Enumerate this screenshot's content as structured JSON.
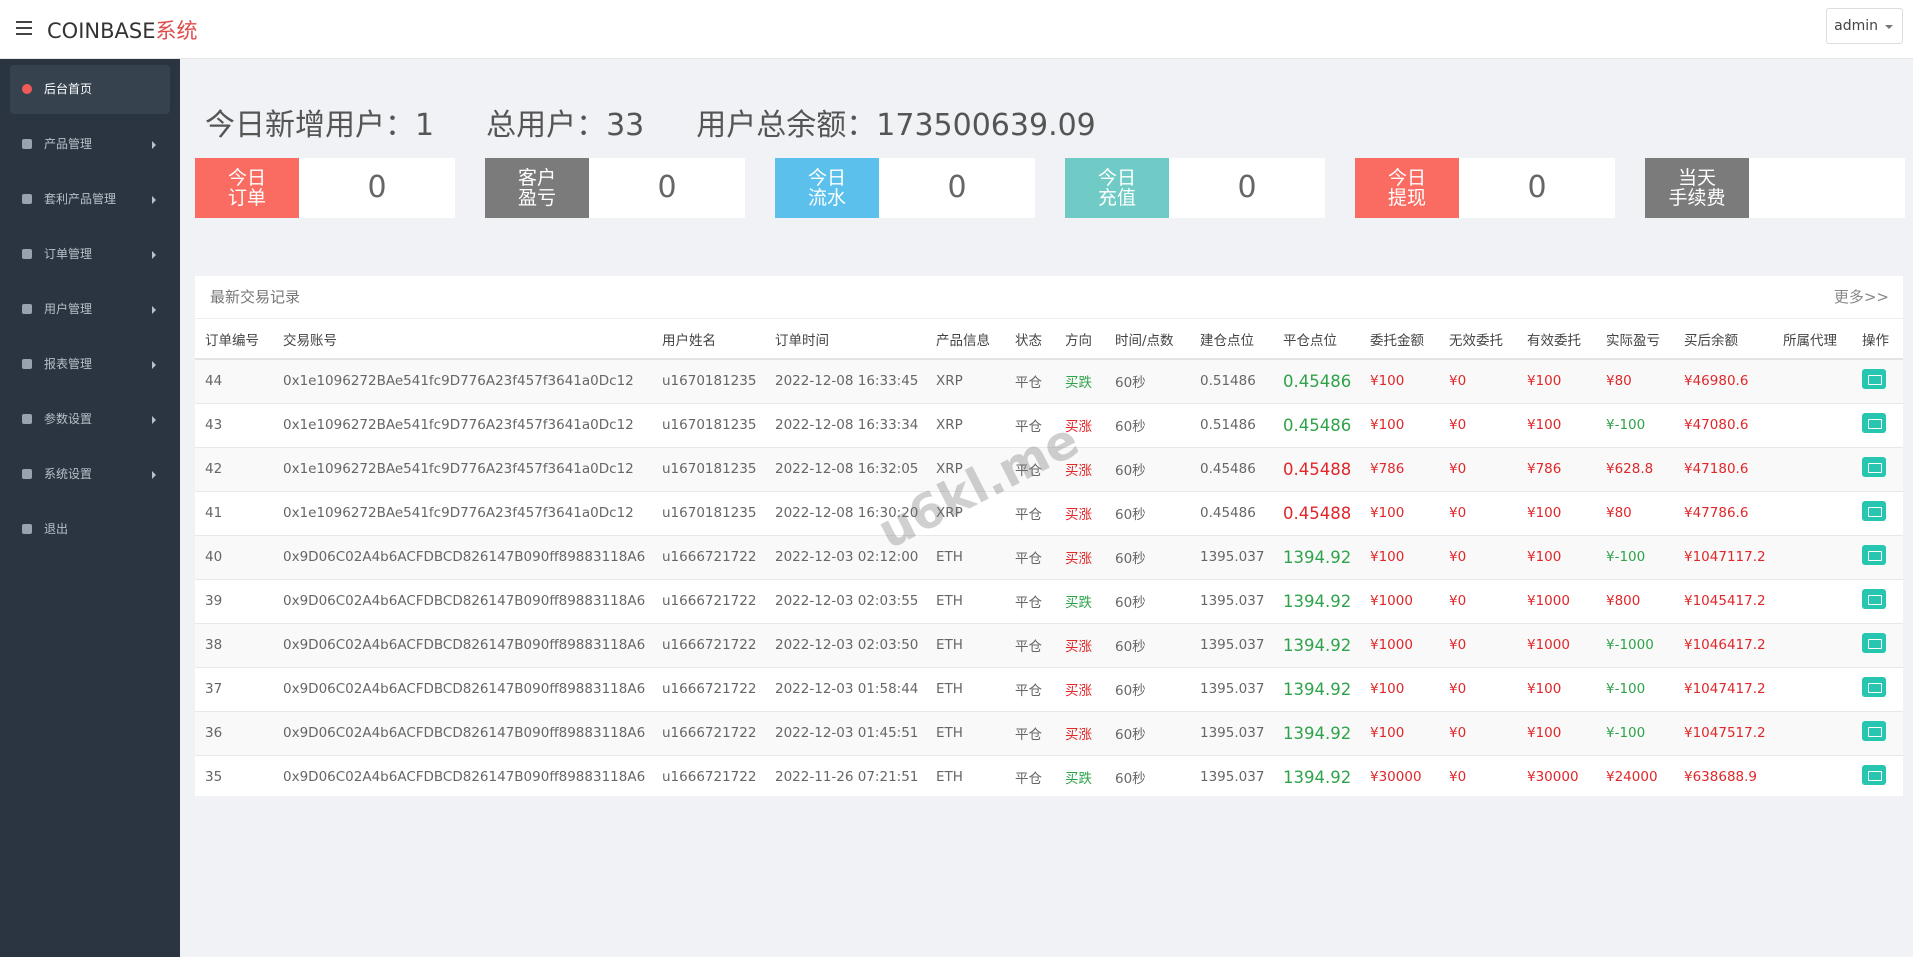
{
  "header": {
    "brand": "COINBASE",
    "brand_suffix": "系统",
    "user": "admin"
  },
  "sidebar": [
    "后台首页",
    "产品管理",
    "套利产品管理",
    "订单管理",
    "用户管理",
    "报表管理",
    "参数设置",
    "系统设置",
    "退出"
  ],
  "summary": [
    {
      "label": "今日新增用户：",
      "value": "1"
    },
    {
      "label": "总用户：",
      "value": "33"
    },
    {
      "label": "用户总余额：",
      "value": "173500639.09"
    }
  ],
  "cards": [
    {
      "label": [
        "今日",
        "订单"
      ],
      "value": "0",
      "color": "#fa6c62"
    },
    {
      "label": [
        "客户",
        "盈亏"
      ],
      "value": "0",
      "color": "#7b7b7b"
    },
    {
      "label": [
        "今日",
        "流水"
      ],
      "value": "0",
      "color": "#5bc0eb"
    },
    {
      "label": [
        "今日",
        "充值"
      ],
      "value": "0",
      "color": "#70cbc6"
    },
    {
      "label": [
        "今日",
        "提现"
      ],
      "value": "0",
      "color": "#fa6c62"
    },
    {
      "label": [
        "当天",
        "手续费"
      ],
      "color": "#7b7b7b"
    }
  ],
  "table": {
    "title": "最新交易记录",
    "more": "更多>>",
    "columns": [
      "订单编号",
      "交易账号",
      "用户姓名",
      "订单时间",
      "产品信息",
      "状态",
      "方向",
      "时间/点数",
      "建仓点位",
      "平仓点位",
      "委托金额",
      "无效委托",
      "有效委托",
      "实际盈亏",
      "买后余额",
      "所属代理",
      "操作"
    ],
    "rows": [
      [
        "44",
        "0x1e1096272BAe541fc9D776A23f457f3641a0Dc12",
        "u1670181235",
        "2022-12-08 16:33:45",
        "XRP",
        "平仓",
        "买跌",
        "60秒",
        "0.51486",
        "0.45486",
        "¥100",
        "¥0",
        "¥100",
        "¥80",
        "¥46980.6"
      ],
      [
        "43",
        "0x1e1096272BAe541fc9D776A23f457f3641a0Dc12",
        "u1670181235",
        "2022-12-08 16:33:34",
        "XRP",
        "平仓",
        "买涨",
        "60秒",
        "0.51486",
        "0.45486",
        "¥100",
        "¥0",
        "¥100",
        "¥-100",
        "¥47080.6"
      ],
      [
        "42",
        "0x1e1096272BAe541fc9D776A23f457f3641a0Dc12",
        "u1670181235",
        "2022-12-08 16:32:05",
        "XRP",
        "平仓",
        "买涨",
        "60秒",
        "0.45486",
        "0.45488",
        "¥786",
        "¥0",
        "¥786",
        "¥628.8",
        "¥47180.6"
      ],
      [
        "41",
        "0x1e1096272BAe541fc9D776A23f457f3641a0Dc12",
        "u1670181235",
        "2022-12-08 16:30:20",
        "XRP",
        "平仓",
        "买涨",
        "60秒",
        "0.45486",
        "0.45488",
        "¥100",
        "¥0",
        "¥100",
        "¥80",
        "¥47786.6"
      ],
      [
        "40",
        "0x9D06C02A4b6ACFDBCD826147B090ff89883118A6",
        "u1666721722",
        "2022-12-03 02:12:00",
        "ETH",
        "平仓",
        "买涨",
        "60秒",
        "1395.037",
        "1394.92",
        "¥100",
        "¥0",
        "¥100",
        "¥-100",
        "¥1047117.2"
      ],
      [
        "39",
        "0x9D06C02A4b6ACFDBCD826147B090ff89883118A6",
        "u1666721722",
        "2022-12-03 02:03:55",
        "ETH",
        "平仓",
        "买跌",
        "60秒",
        "1395.037",
        "1394.92",
        "¥1000",
        "¥0",
        "¥1000",
        "¥800",
        "¥1045417.2"
      ],
      [
        "38",
        "0x9D06C02A4b6ACFDBCD826147B090ff89883118A6",
        "u1666721722",
        "2022-12-03 02:03:50",
        "ETH",
        "平仓",
        "买涨",
        "60秒",
        "1395.037",
        "1394.92",
        "¥1000",
        "¥0",
        "¥1000",
        "¥-1000",
        "¥1046417.2"
      ],
      [
        "37",
        "0x9D06C02A4b6ACFDBCD826147B090ff89883118A6",
        "u1666721722",
        "2022-12-03 01:58:44",
        "ETH",
        "平仓",
        "买涨",
        "60秒",
        "1395.037",
        "1394.92",
        "¥100",
        "¥0",
        "¥100",
        "¥-100",
        "¥1047417.2"
      ],
      [
        "36",
        "0x9D06C02A4b6ACFDBCD826147B090ff89883118A6",
        "u1666721722",
        "2022-12-03 01:45:51",
        "ETH",
        "平仓",
        "买涨",
        "60秒",
        "1395.037",
        "1394.92",
        "¥100",
        "¥0",
        "¥100",
        "¥-100",
        "¥1047517.2"
      ],
      [
        "35",
        "0x9D06C02A4b6ACFDBCD826147B090ff89883118A6",
        "u1666721722",
        "2022-11-26 07:21:51",
        "ETH",
        "平仓",
        "买跌",
        "60秒",
        "1395.037",
        "1394.92",
        "¥30000",
        "¥0",
        "¥30000",
        "¥24000",
        "¥638688.9"
      ]
    ]
  },
  "watermark": "u6kl.me"
}
